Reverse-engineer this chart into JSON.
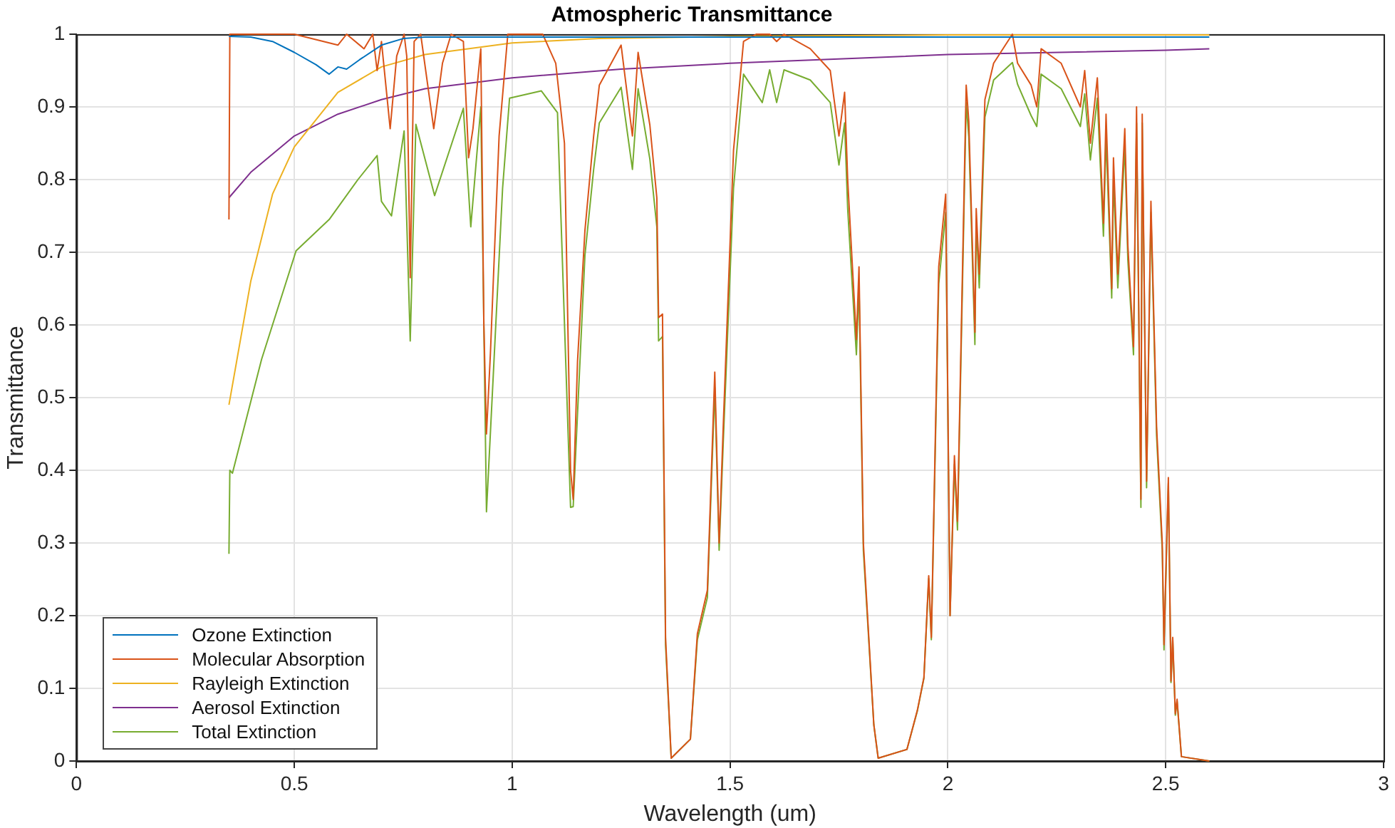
{
  "chart_data": {
    "type": "line",
    "title": "Atmospheric Transmittance",
    "xlabel": "Wavelength (um)",
    "ylabel": "Transmittance",
    "xlim": [
      0,
      3
    ],
    "xticks": [
      0,
      0.5,
      1,
      1.5,
      2,
      2.5,
      3
    ],
    "ylim": [
      0,
      1
    ],
    "yticks": [
      0,
      0.1,
      0.2,
      0.3,
      0.4,
      0.5,
      0.6,
      0.7,
      0.8,
      0.9,
      1
    ],
    "grid": true,
    "legend": "bottom left",
    "marker": "none",
    "line_style": "solid",
    "series": [
      {
        "name": "Ozone Extinction",
        "color": "#0072bd",
        "x": [
          0.35,
          0.4,
          0.45,
          0.5,
          0.55,
          0.58,
          0.6,
          0.62,
          0.65,
          0.7,
          0.75,
          0.8,
          1.0,
          2.6
        ],
        "values": [
          0.997,
          0.996,
          0.99,
          0.975,
          0.958,
          0.945,
          0.955,
          0.952,
          0.965,
          0.985,
          0.994,
          0.996,
          0.996,
          0.996
        ]
      },
      {
        "name": "Molecular Absorption",
        "color": "#d95319",
        "x": [
          0.35,
          0.352,
          0.5,
          0.6,
          0.62,
          0.66,
          0.68,
          0.69,
          0.7,
          0.72,
          0.735,
          0.752,
          0.758,
          0.766,
          0.775,
          0.79,
          0.82,
          0.84,
          0.86,
          0.888,
          0.9,
          0.91,
          0.928,
          0.935,
          0.941,
          0.95,
          0.97,
          0.99,
          1.07,
          1.1,
          1.12,
          1.134,
          1.14,
          1.15,
          1.167,
          1.187,
          1.2,
          1.25,
          1.276,
          1.289,
          1.316,
          1.332,
          1.336,
          1.345,
          1.352,
          1.365,
          1.409,
          1.425,
          1.448,
          1.465,
          1.475,
          1.485,
          1.508,
          1.531,
          1.56,
          1.574,
          1.591,
          1.607,
          1.624,
          1.684,
          1.73,
          1.75,
          1.763,
          1.77,
          1.79,
          1.796,
          1.806,
          1.83,
          1.84,
          1.906,
          1.93,
          1.945,
          1.956,
          1.962,
          1.979,
          1.995,
          2.005,
          2.015,
          2.022,
          2.042,
          2.048,
          2.062,
          2.065,
          2.072,
          2.085,
          2.105,
          2.148,
          2.16,
          2.191,
          2.204,
          2.214,
          2.26,
          2.304,
          2.314,
          2.327,
          2.343,
          2.357,
          2.363,
          2.376,
          2.38,
          2.39,
          2.406,
          2.413,
          2.426,
          2.433,
          2.443,
          2.446,
          2.456,
          2.466,
          2.479,
          2.492,
          2.496,
          2.506,
          2.512,
          2.516,
          2.522,
          2.526,
          2.536,
          2.6
        ],
        "values": [
          0.745,
          1,
          1,
          0.985,
          1,
          0.98,
          1,
          0.95,
          0.99,
          0.87,
          0.97,
          1,
          0.97,
          0.665,
          0.99,
          1,
          0.87,
          0.96,
          1,
          0.99,
          0.83,
          0.87,
          0.98,
          0.6,
          0.45,
          0.56,
          0.86,
          1,
          1,
          0.96,
          0.85,
          0.4,
          0.36,
          0.55,
          0.73,
          0.86,
          0.93,
          0.985,
          0.86,
          0.975,
          0.875,
          0.775,
          0.61,
          0.615,
          0.17,
          0.004,
          0.03,
          0.175,
          0.235,
          0.535,
          0.3,
          0.47,
          0.84,
          0.99,
          1,
          1,
          1,
          0.99,
          1,
          0.98,
          0.95,
          0.86,
          0.92,
          0.8,
          0.58,
          0.68,
          0.3,
          0.05,
          0.004,
          0.016,
          0.07,
          0.115,
          0.255,
          0.17,
          0.68,
          0.78,
          0.2,
          0.42,
          0.33,
          0.93,
          0.88,
          0.59,
          0.76,
          0.67,
          0.91,
          0.96,
          1,
          0.96,
          0.93,
          0.9,
          0.98,
          0.96,
          0.9,
          0.95,
          0.85,
          0.94,
          0.74,
          0.89,
          0.65,
          0.83,
          0.67,
          0.87,
          0.71,
          0.57,
          0.9,
          0.36,
          0.89,
          0.385,
          0.77,
          0.46,
          0.3,
          0.16,
          0.39,
          0.11,
          0.17,
          0.065,
          0.085,
          0.006,
          0
        ]
      },
      {
        "name": "Rayleigh Extinction",
        "color": "#edb120",
        "x": [
          0.35,
          0.4,
          0.45,
          0.5,
          0.6,
          0.7,
          0.8,
          1.0,
          1.2,
          1.5,
          2.0,
          2.6
        ],
        "values": [
          0.49,
          0.66,
          0.78,
          0.845,
          0.92,
          0.955,
          0.972,
          0.988,
          0.994,
          0.997,
          0.999,
          0.999
        ]
      },
      {
        "name": "Aerosol Extinction",
        "color": "#7e2f8e",
        "x": [
          0.35,
          0.4,
          0.5,
          0.6,
          0.7,
          0.8,
          1.0,
          1.25,
          1.5,
          2.0,
          2.5,
          2.6
        ],
        "values": [
          0.775,
          0.81,
          0.86,
          0.89,
          0.91,
          0.925,
          0.94,
          0.952,
          0.96,
          0.972,
          0.978,
          0.98
        ]
      },
      {
        "name": "Total Extinction",
        "color": "#77ac30",
        "x": [
          0.35,
          0.352,
          0.358,
          0.425,
          0.504,
          0.58,
          0.646,
          0.69,
          0.7,
          0.723,
          0.752,
          0.766,
          0.779,
          0.822,
          0.888,
          0.905,
          0.928,
          0.941,
          0.978,
          0.994,
          1.067,
          1.104,
          1.134,
          1.14,
          1.167,
          1.187,
          1.2,
          1.25,
          1.276,
          1.289,
          1.316,
          1.332,
          1.336,
          1.345,
          1.352,
          1.365,
          1.409,
          1.425,
          1.448,
          1.465,
          1.475,
          1.485,
          1.508,
          1.531,
          1.574,
          1.591,
          1.607,
          1.624,
          1.684,
          1.73,
          1.75,
          1.763,
          1.77,
          1.79,
          1.796,
          1.806,
          1.83,
          1.84,
          1.906,
          1.93,
          1.945,
          1.956,
          1.962,
          1.979,
          1.995,
          2.005,
          2.015,
          2.022,
          2.042,
          2.048,
          2.062,
          2.065,
          2.072,
          2.085,
          2.105,
          2.148,
          2.16,
          2.191,
          2.204,
          2.214,
          2.26,
          2.304,
          2.314,
          2.327,
          2.343,
          2.357,
          2.363,
          2.376,
          2.38,
          2.39,
          2.406,
          2.413,
          2.426,
          2.433,
          2.443,
          2.446,
          2.456,
          2.466,
          2.479,
          2.492,
          2.496,
          2.506,
          2.512,
          2.516,
          2.522,
          2.526,
          2.536,
          2.6
        ],
        "values": [
          0.285,
          0.4,
          0.396,
          0.553,
          0.702,
          0.745,
          0.8,
          0.833,
          0.77,
          0.75,
          0.867,
          0.578,
          0.876,
          0.778,
          0.898,
          0.735,
          0.9,
          0.343,
          0.788,
          0.912,
          0.922,
          0.892,
          0.349,
          0.35,
          0.696,
          0.814,
          0.878,
          0.927,
          0.814,
          0.925,
          0.828,
          0.735,
          0.578,
          0.584,
          0.16,
          0.004,
          0.03,
          0.167,
          0.225,
          0.514,
          0.29,
          0.447,
          0.788,
          0.945,
          0.906,
          0.951,
          0.906,
          0.951,
          0.937,
          0.906,
          0.82,
          0.878,
          0.76,
          0.559,
          0.657,
          0.29,
          0.05,
          0.004,
          0.016,
          0.069,
          0.114,
          0.251,
          0.167,
          0.657,
          0.755,
          0.2,
          0.408,
          0.318,
          0.906,
          0.859,
          0.573,
          0.741,
          0.651,
          0.886,
          0.937,
          0.961,
          0.931,
          0.888,
          0.873,
          0.945,
          0.925,
          0.873,
          0.918,
          0.827,
          0.912,
          0.722,
          0.859,
          0.637,
          0.8,
          0.651,
          0.847,
          0.69,
          0.559,
          0.878,
          0.349,
          0.878,
          0.376,
          0.755,
          0.447,
          0.29,
          0.153,
          0.382,
          0.108,
          0.167,
          0.063,
          0.082,
          0.006,
          0
        ]
      }
    ]
  }
}
